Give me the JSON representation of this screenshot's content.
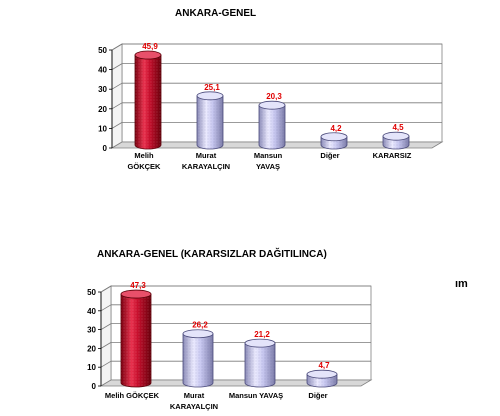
{
  "chart_data": [
    {
      "type": "bar",
      "title": "ANKARA-GENEL",
      "categories": [
        [
          "Melih",
          "GÖKÇEK"
        ],
        [
          "Murat",
          "KARAYALÇIN"
        ],
        [
          "Mansun",
          "YAVAŞ"
        ],
        [
          "Diğer"
        ],
        [
          "KARARSIZ"
        ]
      ],
      "values": [
        45.9,
        25.1,
        20.3,
        4.2,
        4.5
      ],
      "value_labels": [
        "45,9",
        "25,1",
        "20,3",
        "4,2",
        "4,5"
      ],
      "yticks": [
        "0",
        "10",
        "20",
        "30",
        "40",
        "50"
      ],
      "ylim": [
        0,
        50
      ],
      "bar_colors": [
        "#c8102e",
        "#c8c8f0",
        "#c8c8f0",
        "#c8c8f0",
        "#c8c8f0"
      ],
      "grid": true,
      "style": "3d-cylinder"
    },
    {
      "type": "bar",
      "title": "ANKARA-GENEL (KARARSIZLAR DAĞITILINCA)",
      "categories": [
        [
          "Melih GÖKÇEK"
        ],
        [
          "Murat",
          "KARAYALÇIN"
        ],
        [
          "Mansun YAVAŞ"
        ],
        [
          "Diğer"
        ]
      ],
      "values": [
        47.3,
        26.2,
        21.2,
        4.7
      ],
      "value_labels": [
        "47,3",
        "26,2",
        "21,2",
        "4,7"
      ],
      "yticks": [
        "0",
        "10",
        "20",
        "30",
        "40",
        "50"
      ],
      "ylim": [
        0,
        50
      ],
      "bar_colors": [
        "#c8102e",
        "#c8c8f0",
        "#c8c8f0",
        "#c8c8f0"
      ],
      "grid": true,
      "style": "3d-cylinder"
    }
  ],
  "stray_text": "ım"
}
